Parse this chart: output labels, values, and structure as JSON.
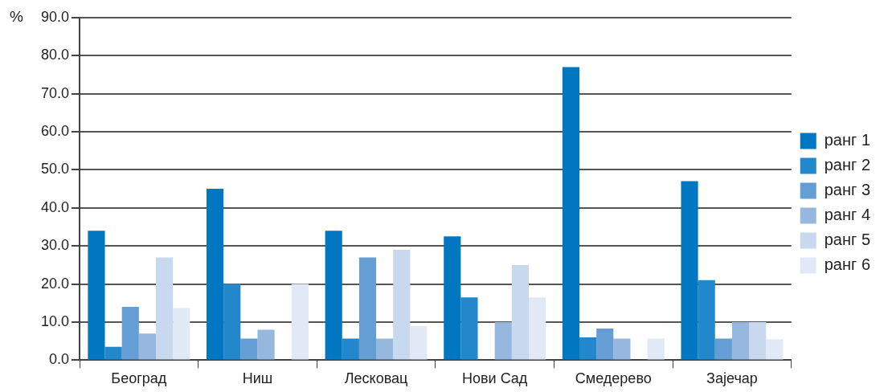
{
  "chart_data": {
    "type": "bar",
    "ylabel": "%",
    "categories": [
      "Београд",
      "Ниш",
      "Лесковац",
      "Нови Сад",
      "Смедерево",
      "Зајечар"
    ],
    "series": [
      {
        "name": "ранг 1",
        "color": "#0077c0",
        "values": [
          34,
          45,
          34,
          32.5,
          77,
          47
        ]
      },
      {
        "name": "ранг 2",
        "color": "#2388cb",
        "values": [
          3.5,
          20,
          5.7,
          16.5,
          6,
          21
        ]
      },
      {
        "name": "ранг 3",
        "color": "#659ed4",
        "values": [
          14,
          5.7,
          27,
          0,
          8.3,
          5.7
        ]
      },
      {
        "name": "ранг 4",
        "color": "#96b7de",
        "values": [
          7,
          8,
          5.7,
          10,
          5.7,
          10
        ]
      },
      {
        "name": "ранг 5",
        "color": "#c7d8ef",
        "values": [
          27,
          0,
          29,
          25,
          0,
          10
        ]
      },
      {
        "name": "ранг 6",
        "color": "#e2e9f6",
        "values": [
          13.7,
          20,
          9,
          16.5,
          5.7,
          5.5
        ]
      }
    ],
    "ylim": [
      0,
      90
    ],
    "yticks": [
      {
        "value": 0,
        "label": "0.0"
      },
      {
        "value": 10,
        "label": "10.0"
      },
      {
        "value": 20,
        "label": "20.0"
      },
      {
        "value": 30,
        "label": "30.0"
      },
      {
        "value": 40,
        "label": "40.0"
      },
      {
        "value": 50,
        "label": "50.0"
      },
      {
        "value": 60,
        "label": "60.0"
      },
      {
        "value": 70,
        "label": "70.0"
      },
      {
        "value": 80,
        "label": "80.0"
      },
      {
        "value": 90,
        "label": "90.0"
      }
    ],
    "grid": "y",
    "legend": "right"
  }
}
